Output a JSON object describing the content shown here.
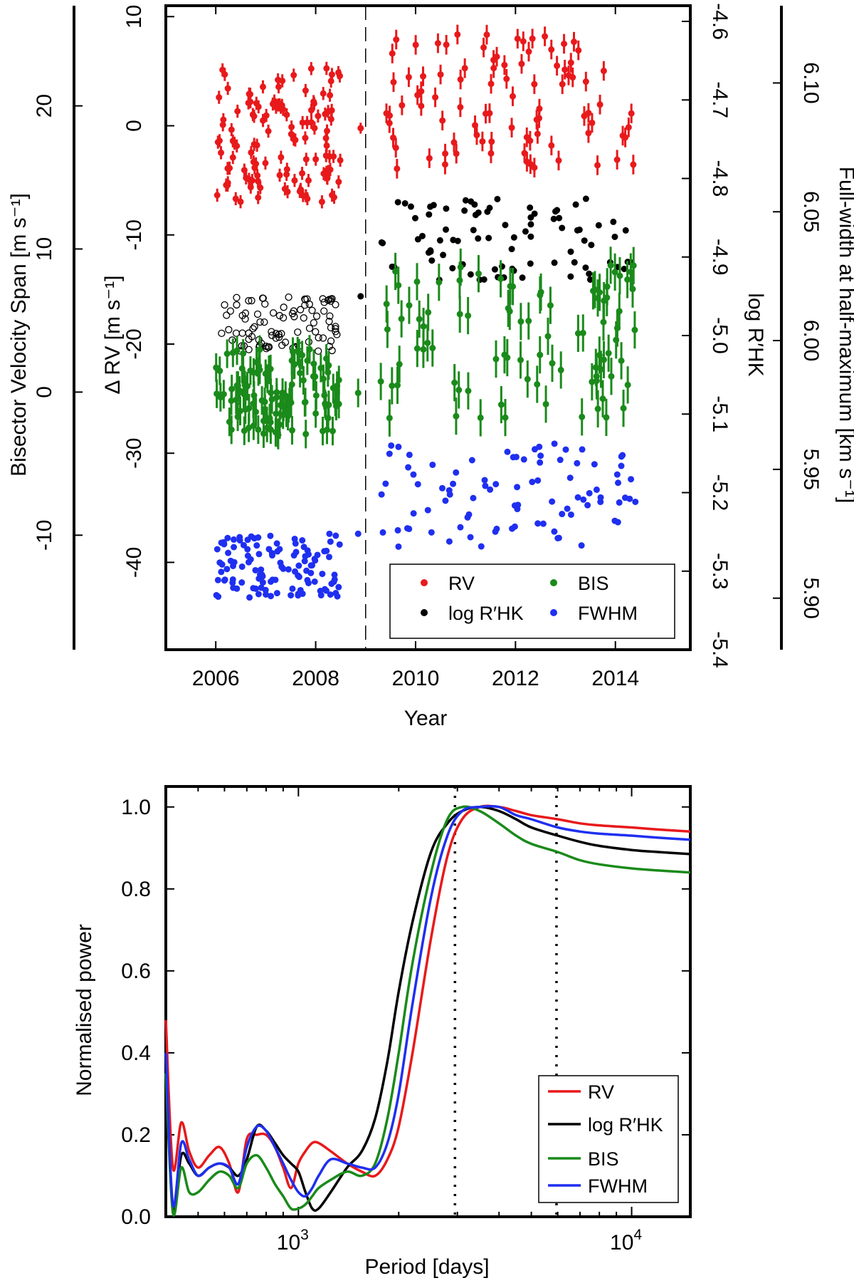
{
  "chart_data": [
    {
      "type": "scatter",
      "title": "",
      "xlabel": "Year",
      "xlim": [
        2005,
        2015.5
      ],
      "x_ticks": [
        "2006",
        "2008",
        "2010",
        "2012",
        "2014"
      ],
      "axes": {
        "rv": {
          "label": "Δ RV [m s⁻¹]",
          "ylim": [
            -48,
            11
          ],
          "ticks": [
            "10",
            "0",
            "-10",
            "-20",
            "-30",
            "-40"
          ]
        },
        "bis": {
          "label": "Bisector Velocity Span [m s⁻¹]",
          "ylim": [
            -18,
            27
          ],
          "ticks": [
            "20",
            "10",
            "0",
            "-10"
          ]
        },
        "logrhk": {
          "label": "log R′HK",
          "ylim": [
            -5.4,
            -4.58
          ],
          "ticks": [
            "-4.6",
            "-4.7",
            "-4.8",
            "-4.9",
            "-5.0",
            "-5.1",
            "-5.2",
            "-5.3",
            "-5.4"
          ]
        },
        "fwhm": {
          "label": "Full-width at half-maximum [km s⁻¹]",
          "ylim": [
            5.88,
            6.13
          ],
          "ticks": [
            "6.10",
            "6.05",
            "6.00",
            "5.95",
            "5.90"
          ]
        }
      },
      "divider_year": 2009.0,
      "legend": {
        "position": "bottom-right",
        "entries": [
          {
            "name": "RV",
            "color": "#e8191b"
          },
          {
            "name": "log R′HK",
            "color": "#000000"
          },
          {
            "name": "BIS",
            "color": "#1a8a1a"
          },
          {
            "name": "FWHM",
            "color": "#1f2ff0"
          }
        ]
      },
      "series": [
        {
          "name": "RV",
          "axis": "rv",
          "color": "#e8191b",
          "marker": "filled-errorbar",
          "segments": [
            {
              "x0": 2006.0,
              "x1": 2008.5,
              "lo": -7,
              "hi": 5.5,
              "n": 125,
              "err": 0.6
            },
            {
              "x0": 2008.9,
              "x1": 2009.0,
              "lo": -0.5,
              "hi": 0.3,
              "n": 1,
              "err": 0.5
            },
            {
              "x0": 2009.3,
              "x1": 2014.4,
              "lo": -4,
              "hi": 8.5,
              "n": 90,
              "err": 0.9
            }
          ]
        },
        {
          "name": "log R′HK",
          "axis": "logrhk",
          "color": "#000000",
          "marker": "open-before-2009-filled-after",
          "segments": [
            {
              "x0": 2006.0,
              "x1": 2008.5,
              "lo": -5.02,
              "hi": -4.95,
              "n": 95,
              "err": 0,
              "open": true
            },
            {
              "x0": 2008.9,
              "x1": 2008.9,
              "lo": -4.95,
              "hi": -4.95,
              "n": 1,
              "err": 0
            },
            {
              "x0": 2009.3,
              "x1": 2014.4,
              "lo": -4.93,
              "hi": -4.82,
              "n": 85,
              "err": 0
            }
          ]
        },
        {
          "name": "BIS",
          "axis": "bis",
          "color": "#1a8a1a",
          "marker": "filled-errorbar",
          "segments": [
            {
              "x0": 2006.0,
              "x1": 2008.5,
              "lo": -3,
              "hi": 3,
              "n": 115,
              "err": 1.0
            },
            {
              "x0": 2008.85,
              "x1": 2008.95,
              "lo": -1,
              "hi": 0,
              "n": 1,
              "err": 1.0
            },
            {
              "x0": 2009.3,
              "x1": 2014.4,
              "lo": -2,
              "hi": 9,
              "n": 90,
              "err": 1.3
            }
          ]
        },
        {
          "name": "FWHM",
          "axis": "fwhm",
          "color": "#1f2ff0",
          "marker": "filled",
          "segments": [
            {
              "x0": 2006.0,
              "x1": 2008.5,
              "lo": 5.9,
              "hi": 5.925,
              "n": 120,
              "err": 0
            },
            {
              "x0": 2008.85,
              "x1": 2008.85,
              "lo": 5.925,
              "hi": 5.925,
              "n": 1,
              "err": 0
            },
            {
              "x0": 2009.3,
              "x1": 2014.4,
              "lo": 5.92,
              "hi": 5.96,
              "n": 90,
              "err": 0
            }
          ]
        }
      ]
    },
    {
      "type": "line",
      "title": "",
      "xlabel": "Period [days]",
      "ylabel": "Normalised power",
      "x_scale": "log",
      "xlim": [
        400,
        15000
      ],
      "ylim": [
        0.0,
        1.05
      ],
      "y_ticks": [
        "0.0",
        "0.2",
        "0.4",
        "0.6",
        "0.8",
        "1.0"
      ],
      "x_ticks": [
        {
          "base": "10",
          "exp": "3",
          "value": 1000
        },
        {
          "base": "10",
          "exp": "4",
          "value": 10000
        }
      ],
      "vlines": [
        2950,
        5950
      ],
      "legend": {
        "position": "bottom-right",
        "entries": [
          {
            "name": "RV",
            "color": "#e8191b"
          },
          {
            "name": "log R′HK",
            "color": "#000000"
          },
          {
            "name": "BIS",
            "color": "#1a8a1a"
          },
          {
            "name": "FWHM",
            "color": "#1f2ff0"
          }
        ]
      },
      "series": [
        {
          "name": "RV",
          "color": "#e8191b",
          "x": [
            400,
            420,
            445,
            470,
            500,
            540,
            580,
            620,
            660,
            700,
            750,
            800,
            850,
            900,
            950,
            1000,
            1050,
            1100,
            1150,
            1250,
            1400,
            1550,
            1700,
            1850,
            2000,
            2200,
            2500,
            2800,
            3100,
            3500,
            4000,
            4500,
            5000,
            6000,
            7000,
            8000,
            10000,
            12000,
            15000
          ],
          "y": [
            0.48,
            0.12,
            0.23,
            0.16,
            0.12,
            0.15,
            0.17,
            0.13,
            0.06,
            0.19,
            0.2,
            0.2,
            0.17,
            0.12,
            0.07,
            0.13,
            0.16,
            0.18,
            0.18,
            0.16,
            0.13,
            0.11,
            0.1,
            0.14,
            0.22,
            0.4,
            0.68,
            0.88,
            0.97,
            1.0,
            1.0,
            0.99,
            0.98,
            0.97,
            0.96,
            0.955,
            0.95,
            0.945,
            0.94
          ]
        },
        {
          "name": "log R′HK",
          "color": "#000000",
          "x": [
            400,
            420,
            445,
            470,
            500,
            540,
            580,
            620,
            660,
            700,
            750,
            800,
            850,
            900,
            950,
            1000,
            1050,
            1100,
            1150,
            1250,
            1400,
            1550,
            1700,
            1850,
            2000,
            2200,
            2500,
            2800,
            3100,
            3500,
            4000,
            4500,
            5000,
            6000,
            7000,
            8000,
            10000,
            12000,
            15000
          ],
          "y": [
            0.38,
            0.02,
            0.15,
            0.13,
            0.1,
            0.12,
            0.13,
            0.12,
            0.1,
            0.14,
            0.22,
            0.21,
            0.18,
            0.15,
            0.13,
            0.11,
            0.06,
            0.02,
            0.02,
            0.06,
            0.12,
            0.16,
            0.24,
            0.38,
            0.55,
            0.72,
            0.89,
            0.96,
            0.99,
            1.0,
            0.99,
            0.97,
            0.95,
            0.93,
            0.915,
            0.905,
            0.895,
            0.89,
            0.885
          ]
        },
        {
          "name": "BIS",
          "color": "#1a8a1a",
          "x": [
            400,
            420,
            445,
            470,
            500,
            540,
            580,
            620,
            660,
            700,
            750,
            800,
            850,
            900,
            950,
            1000,
            1050,
            1100,
            1150,
            1250,
            1400,
            1550,
            1700,
            1850,
            2000,
            2200,
            2500,
            2800,
            3100,
            3500,
            4000,
            4500,
            5000,
            6000,
            7000,
            8000,
            10000,
            12000,
            15000
          ],
          "y": [
            0.35,
            0.01,
            0.12,
            0.06,
            0.06,
            0.09,
            0.11,
            0.1,
            0.07,
            0.13,
            0.15,
            0.12,
            0.08,
            0.05,
            0.02,
            0.02,
            0.03,
            0.05,
            0.07,
            0.09,
            0.11,
            0.1,
            0.13,
            0.24,
            0.4,
            0.62,
            0.84,
            0.97,
            1.0,
            0.99,
            0.96,
            0.93,
            0.91,
            0.89,
            0.87,
            0.86,
            0.85,
            0.845,
            0.84
          ]
        },
        {
          "name": "FWHM",
          "color": "#1f2ff0",
          "x": [
            400,
            420,
            445,
            470,
            500,
            540,
            580,
            620,
            660,
            700,
            750,
            800,
            850,
            900,
            950,
            1000,
            1050,
            1100,
            1150,
            1250,
            1400,
            1550,
            1700,
            1850,
            2000,
            2200,
            2500,
            2800,
            3100,
            3500,
            4000,
            4500,
            5000,
            6000,
            7000,
            8000,
            10000,
            12000,
            15000
          ],
          "y": [
            0.4,
            0.03,
            0.18,
            0.14,
            0.1,
            0.12,
            0.13,
            0.12,
            0.08,
            0.17,
            0.22,
            0.21,
            0.17,
            0.13,
            0.09,
            0.06,
            0.05,
            0.07,
            0.1,
            0.14,
            0.13,
            0.12,
            0.12,
            0.18,
            0.3,
            0.52,
            0.78,
            0.93,
            0.99,
            1.0,
            1.0,
            0.98,
            0.97,
            0.95,
            0.94,
            0.935,
            0.93,
            0.925,
            0.92
          ]
        }
      ]
    }
  ]
}
